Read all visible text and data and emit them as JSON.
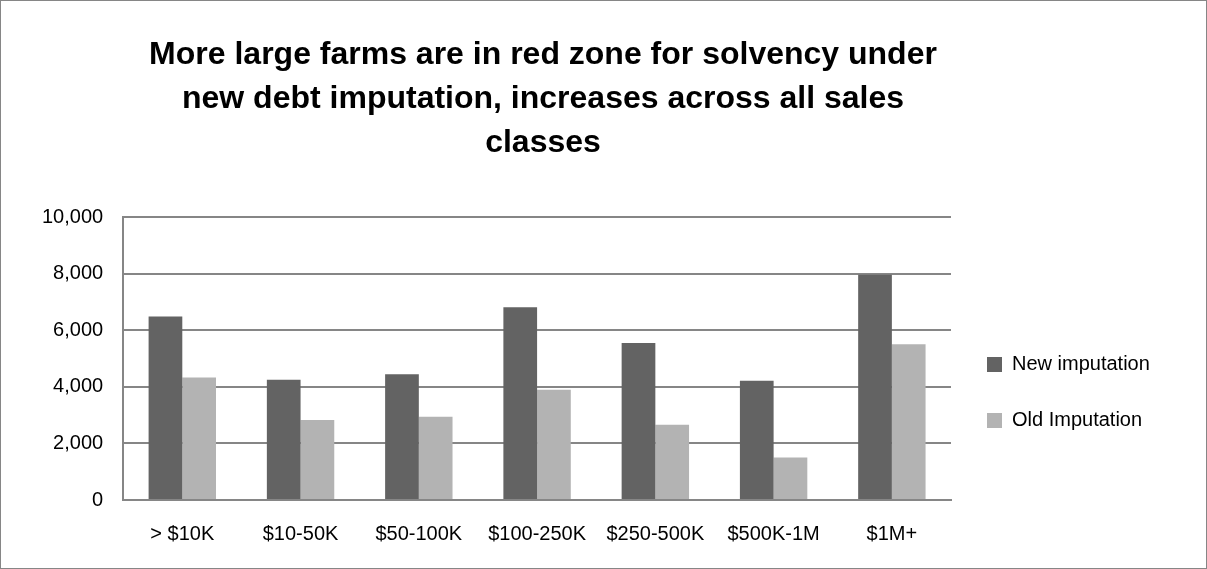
{
  "chart_data": {
    "type": "bar",
    "title": "More large farms are in red zone for solvency under new debt imputation, increases across all sales classes",
    "categories": [
      "> $10K",
      "$10-50K",
      "$50-100K",
      "$100-250K",
      "$250-500K",
      "$500K-1M",
      "$1M+"
    ],
    "series": [
      {
        "name": "New imputation",
        "color": "#636363",
        "values": [
          6480,
          4250,
          4440,
          6810,
          5550,
          4210,
          7960
        ]
      },
      {
        "name": "Old Imputation",
        "color": "#b3b3b3",
        "values": [
          4330,
          2830,
          2940,
          3900,
          2660,
          1500,
          5500
        ]
      }
    ],
    "ylim": [
      0,
      10000
    ],
    "yticks": [
      0,
      {
        "value": 2000,
        "label": "2,000"
      },
      {
        "value": 4000,
        "label": "4,000"
      },
      {
        "value": 6000,
        "label": "6,000"
      },
      {
        "value": 8000,
        "label": "8,000"
      },
      {
        "value": 10000,
        "label": "10,000"
      }
    ],
    "grid": "y",
    "legend": "right"
  }
}
